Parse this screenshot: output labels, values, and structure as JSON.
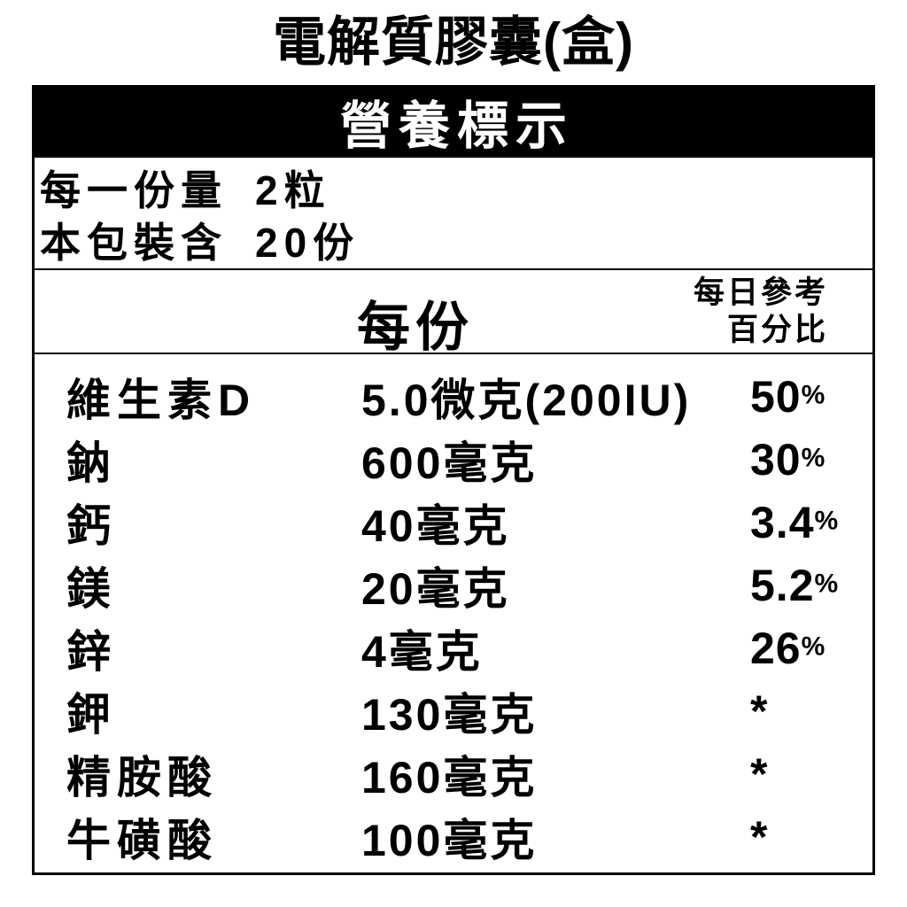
{
  "title": "電解質膠囊(盒)",
  "panel": {
    "header": "營養標示",
    "serving": [
      {
        "label": "每一份量",
        "value": "2粒"
      },
      {
        "label": "本包裝含",
        "value": "20份"
      }
    ],
    "columns": {
      "per_serving": "每份",
      "daily_ref_line1": "每日參考",
      "daily_ref_line2": "百分比"
    },
    "rows": [
      {
        "label": "維生素D",
        "amount": "5.0微克(200IU)",
        "pct_num": "50",
        "pct_sign": "%"
      },
      {
        "label": "鈉",
        "amount": "600毫克",
        "pct_num": "30",
        "pct_sign": "%"
      },
      {
        "label": "鈣",
        "amount": "40毫克",
        "pct_num": "3.4",
        "pct_sign": "%"
      },
      {
        "label": "鎂",
        "amount": "20毫克",
        "pct_num": "5.2",
        "pct_sign": "%"
      },
      {
        "label": "鋅",
        "amount": "4毫克",
        "pct_num": "26",
        "pct_sign": "%"
      },
      {
        "label": "鉀",
        "amount": "130毫克",
        "pct_num": "*",
        "pct_sign": ""
      },
      {
        "label": "精胺酸",
        "amount": "160毫克",
        "pct_num": "*",
        "pct_sign": ""
      },
      {
        "label": "牛磺酸",
        "amount": "100毫克",
        "pct_num": "*",
        "pct_sign": ""
      }
    ],
    "colors": {
      "header_bg": "#000000",
      "header_text": "#ffffff",
      "text": "#000000",
      "background": "#ffffff"
    }
  }
}
